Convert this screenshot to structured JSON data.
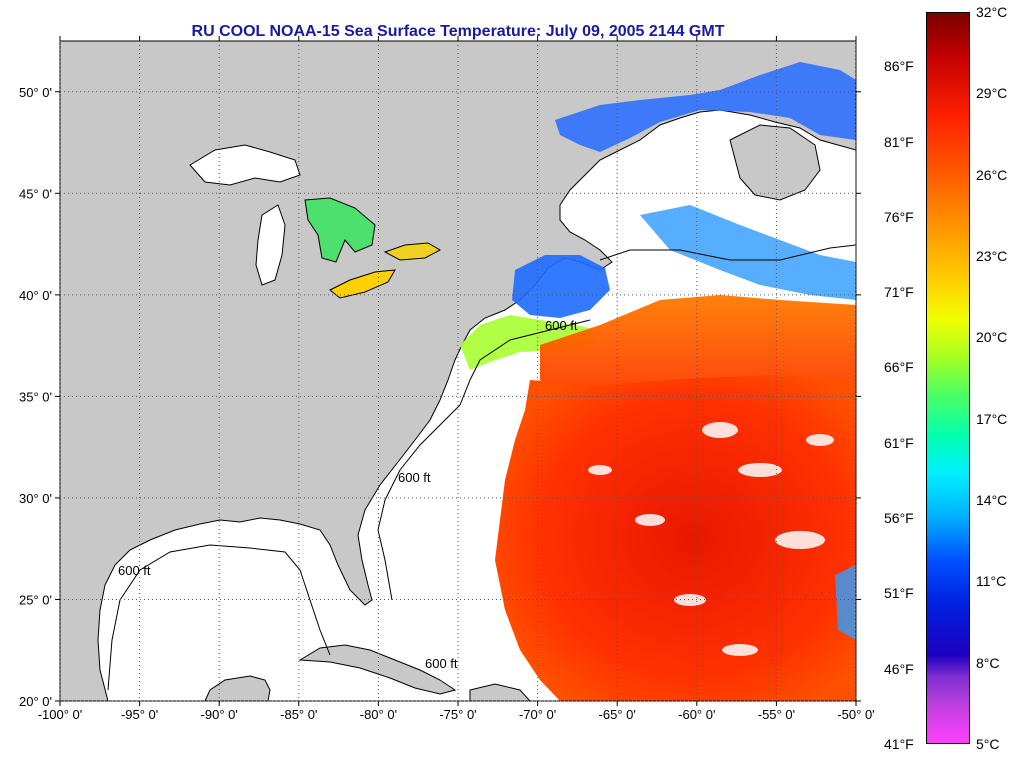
{
  "title": "RU COOL  NOAA-15  Sea Surface Temperature:  July 09, 2005 2144 GMT",
  "map": {
    "lon_range": [
      -100,
      -50
    ],
    "lat_range": [
      20,
      52.5
    ],
    "lon_ticks": [
      {
        "value": -100,
        "label": "-100° 0'"
      },
      {
        "value": -95,
        "label": "-95° 0'"
      },
      {
        "value": -90,
        "label": "-90° 0'"
      },
      {
        "value": -85,
        "label": "-85° 0'"
      },
      {
        "value": -80,
        "label": "-80° 0'"
      },
      {
        "value": -75,
        "label": "-75° 0'"
      },
      {
        "value": -70,
        "label": "-70° 0'"
      },
      {
        "value": -65,
        "label": "-65° 0'"
      },
      {
        "value": -60,
        "label": "-60° 0'"
      },
      {
        "value": -55,
        "label": "-55° 0'"
      },
      {
        "value": -50,
        "label": "-50° 0'"
      }
    ],
    "lat_ticks": [
      {
        "value": 20,
        "label": "20° 0'"
      },
      {
        "value": 25,
        "label": "25° 0'"
      },
      {
        "value": 30,
        "label": "30° 0'"
      },
      {
        "value": 35,
        "label": "35° 0'"
      },
      {
        "value": 40,
        "label": "40° 0'"
      },
      {
        "value": 45,
        "label": "45° 0'"
      },
      {
        "value": 50,
        "label": "50° 0'"
      }
    ],
    "contour_label": "600 ft",
    "land_color": "#c8c8c8",
    "ocean_color": "#ffffff"
  },
  "colorbar": {
    "celsius_range": [
      5,
      32
    ],
    "celsius_labels": [
      "32°C",
      "29°C",
      "26°C",
      "23°C",
      "20°C",
      "17°C",
      "14°C",
      "11°C",
      "8°C",
      "5°C"
    ],
    "fahrenheit_labels": [
      "86°F",
      "81°F",
      "76°F",
      "71°F",
      "66°F",
      "61°F",
      "56°F",
      "51°F",
      "46°F",
      "41°F"
    ],
    "fahrenheit_values": [
      86,
      81,
      76,
      71,
      66,
      61,
      56,
      51,
      46,
      41
    ]
  }
}
